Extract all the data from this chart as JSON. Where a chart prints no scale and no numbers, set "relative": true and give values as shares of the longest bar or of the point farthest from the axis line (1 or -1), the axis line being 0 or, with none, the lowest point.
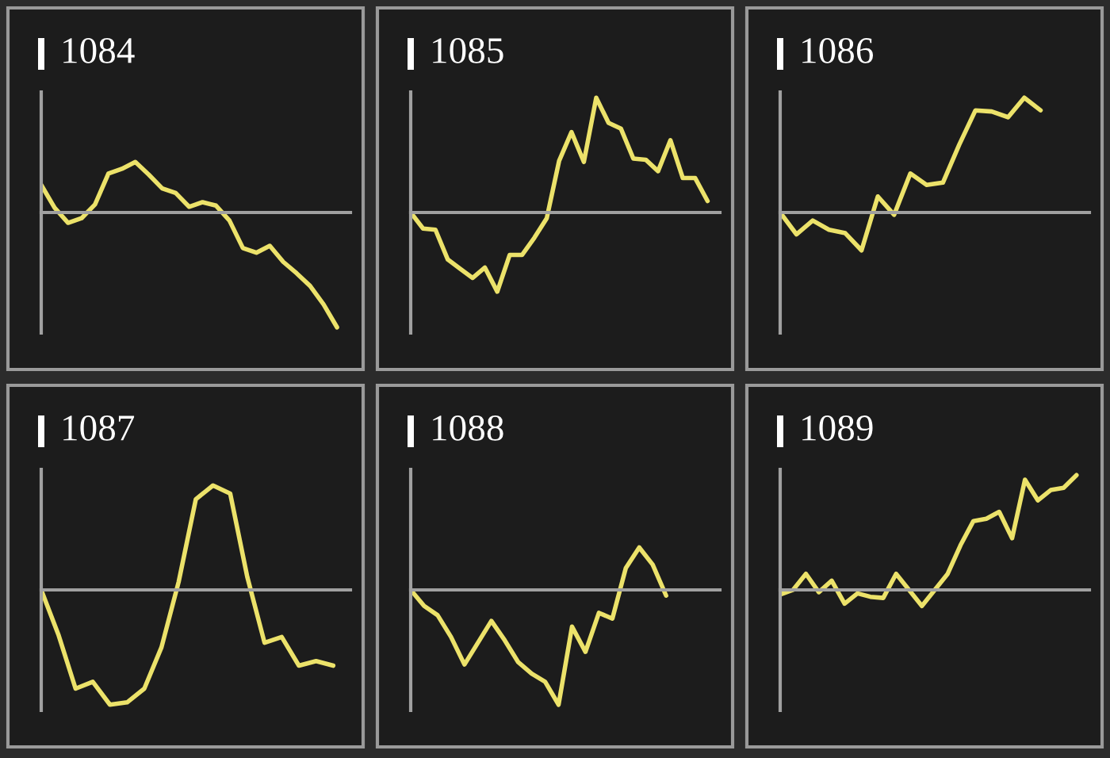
{
  "chart_data": [
    {
      "type": "line",
      "title": "1084",
      "relative": true,
      "color": "#ece26a",
      "categories": [
        null,
        null,
        null,
        null,
        null,
        null,
        null,
        null,
        null,
        null,
        null,
        null,
        null,
        null,
        null,
        null,
        null,
        null,
        null,
        null,
        null,
        null,
        null
      ],
      "values": [
        0.24,
        0.04,
        -0.09,
        -0.05,
        0.07,
        0.34,
        0.38,
        0.44,
        0.33,
        0.21,
        0.17,
        0.05,
        0.09,
        0.06,
        -0.07,
        -0.31,
        -0.35,
        -0.29,
        -0.43,
        -0.53,
        -0.64,
        -0.8,
        -1
      ]
    },
    {
      "type": "line",
      "title": "1085",
      "relative": true,
      "color": "#ece26a",
      "categories": [
        null,
        null,
        null,
        null,
        null,
        null,
        null,
        null,
        null,
        null,
        null,
        null,
        null,
        null,
        null,
        null,
        null,
        null,
        null,
        null,
        null,
        null,
        null,
        null,
        null
      ],
      "values": [
        0,
        -0.14,
        -0.15,
        -0.41,
        -0.49,
        -0.57,
        -0.48,
        -0.69,
        -0.37,
        -0.37,
        -0.22,
        -0.05,
        0.45,
        0.7,
        0.44,
        1,
        0.78,
        0.73,
        0.47,
        0.46,
        0.36,
        0.63,
        0.3,
        0.3,
        0.1
      ]
    },
    {
      "type": "line",
      "title": "1086",
      "relative": true,
      "color": "#ece26a",
      "categories": [
        null,
        null,
        null,
        null,
        null,
        null,
        null,
        null,
        null,
        null,
        null,
        null,
        null,
        null,
        null,
        null,
        null,
        null,
        null
      ],
      "values": [
        0,
        -0.19,
        -0.07,
        -0.15,
        -0.18,
        -0.33,
        0.14,
        -0.02,
        0.34,
        0.24,
        0.26,
        0.59,
        0.89,
        0.88,
        0.83,
        1,
        0.89,
        null,
        null
      ]
    },
    {
      "type": "line",
      "title": "1087",
      "relative": true,
      "color": "#ece26a",
      "categories": [
        null,
        null,
        null,
        null,
        null,
        null,
        null,
        null,
        null,
        null,
        null,
        null,
        null,
        null,
        null,
        null,
        null,
        null
      ],
      "values": [
        0,
        -0.39,
        -0.86,
        -0.8,
        -1,
        -0.98,
        -0.86,
        -0.5,
        0.07,
        0.79,
        0.91,
        0.84,
        0.11,
        -0.46,
        -0.41,
        -0.66,
        -0.62,
        -0.66
      ]
    },
    {
      "type": "line",
      "title": "1088",
      "relative": true,
      "color": "#ece26a",
      "categories": [
        null,
        null,
        null,
        null,
        null,
        null,
        null,
        null,
        null,
        null,
        null,
        null,
        null,
        null,
        null,
        null,
        null,
        null,
        null,
        null,
        null,
        null,
        null
      ],
      "values": [
        0,
        -0.14,
        -0.22,
        -0.41,
        -0.65,
        -0.46,
        -0.27,
        -0.44,
        -0.63,
        -0.73,
        -0.8,
        -1,
        -0.32,
        -0.54,
        -0.2,
        -0.25,
        0.19,
        0.37,
        0.22,
        -0.05,
        null,
        null,
        null
      ]
    },
    {
      "type": "line",
      "title": "1089",
      "relative": true,
      "color": "#ece26a",
      "categories": [
        null,
        null,
        null,
        null,
        null,
        null,
        null,
        null,
        null,
        null,
        null,
        null,
        null,
        null,
        null,
        null,
        null,
        null,
        null,
        null,
        null,
        null,
        null,
        null
      ],
      "values": [
        -0.04,
        0,
        0.14,
        -0.02,
        0.08,
        -0.12,
        -0.03,
        -0.06,
        -0.07,
        0.14,
        0,
        -0.14,
        0,
        0.14,
        0.39,
        0.6,
        0.62,
        0.68,
        0.45,
        0.96,
        0.78,
        0.87,
        0.89,
        1
      ]
    }
  ]
}
